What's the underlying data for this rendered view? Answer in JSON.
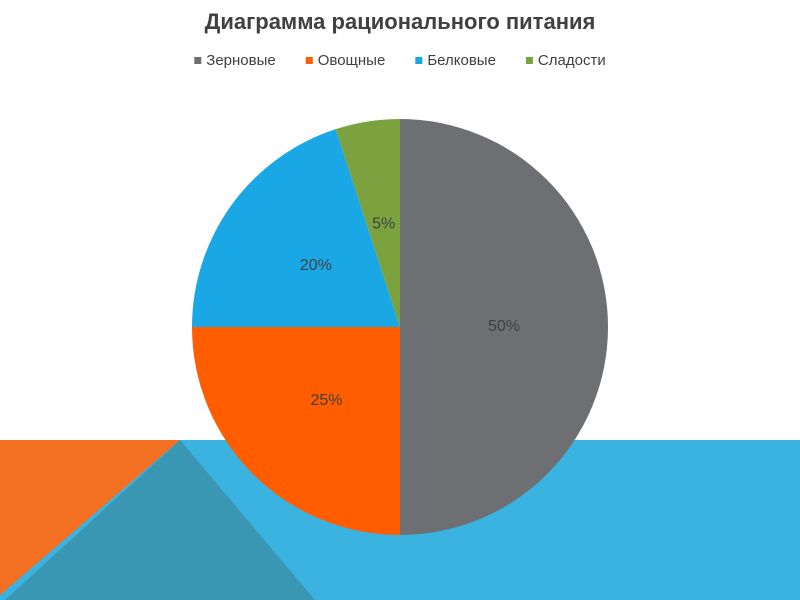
{
  "chart_data": {
    "type": "pie",
    "title": "Диаграмма рационального питания",
    "categories": [
      "Зерновые",
      "Овощные",
      "Белковые",
      "Сладости"
    ],
    "values": [
      50,
      25,
      20,
      5
    ],
    "value_labels": [
      "50%",
      "25%",
      "20%",
      "5%"
    ],
    "colors": [
      "#6e6f73",
      "#ff5d00",
      "#1aa7e6",
      "#7ba23f"
    ],
    "legend": "top"
  }
}
